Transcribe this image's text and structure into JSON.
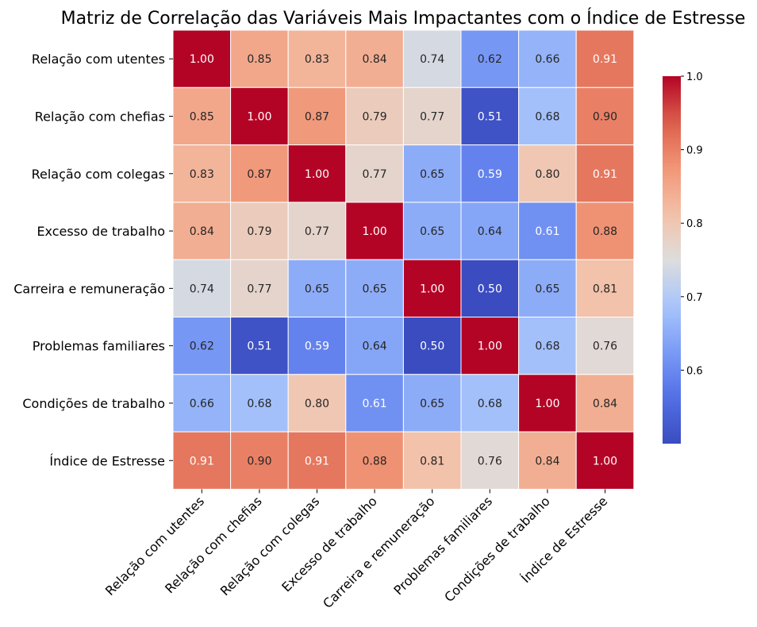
{
  "chart_data": {
    "type": "heatmap",
    "title": "Matriz de Correlação das Variáveis Mais Impactantes com o Índice de Estresse",
    "labels": [
      "Relação com utentes",
      "Relação com chefias",
      "Relação com colegas",
      "Excesso de trabalho",
      "Carreira e remuneração",
      "Problemas familiares",
      "Condições de trabalho",
      "Índice de Estresse"
    ],
    "matrix": [
      [
        1.0,
        0.85,
        0.83,
        0.84,
        0.74,
        0.62,
        0.66,
        0.91
      ],
      [
        0.85,
        1.0,
        0.87,
        0.79,
        0.77,
        0.51,
        0.68,
        0.9
      ],
      [
        0.83,
        0.87,
        1.0,
        0.77,
        0.65,
        0.59,
        0.8,
        0.91
      ],
      [
        0.84,
        0.79,
        0.77,
        1.0,
        0.65,
        0.64,
        0.61,
        0.88
      ],
      [
        0.74,
        0.77,
        0.65,
        0.65,
        1.0,
        0.5,
        0.65,
        0.81
      ],
      [
        0.62,
        0.51,
        0.59,
        0.64,
        0.5,
        1.0,
        0.68,
        0.76
      ],
      [
        0.66,
        0.68,
        0.8,
        0.61,
        0.65,
        0.68,
        1.0,
        0.84
      ],
      [
        0.91,
        0.9,
        0.91,
        0.88,
        0.81,
        0.76,
        0.84,
        1.0
      ]
    ],
    "colormap": "coolwarm",
    "vmin": 0.5,
    "vmax": 1.0,
    "colorbar_ticks": [
      "0.6",
      "0.7",
      "0.8",
      "0.9",
      "1.0"
    ],
    "colorbar_tick_values": [
      0.6,
      0.7,
      0.8,
      0.9,
      1.0
    ],
    "annotation_format": "2 decimals",
    "gridlines": "white cell borders",
    "legend": "colorbar right"
  }
}
